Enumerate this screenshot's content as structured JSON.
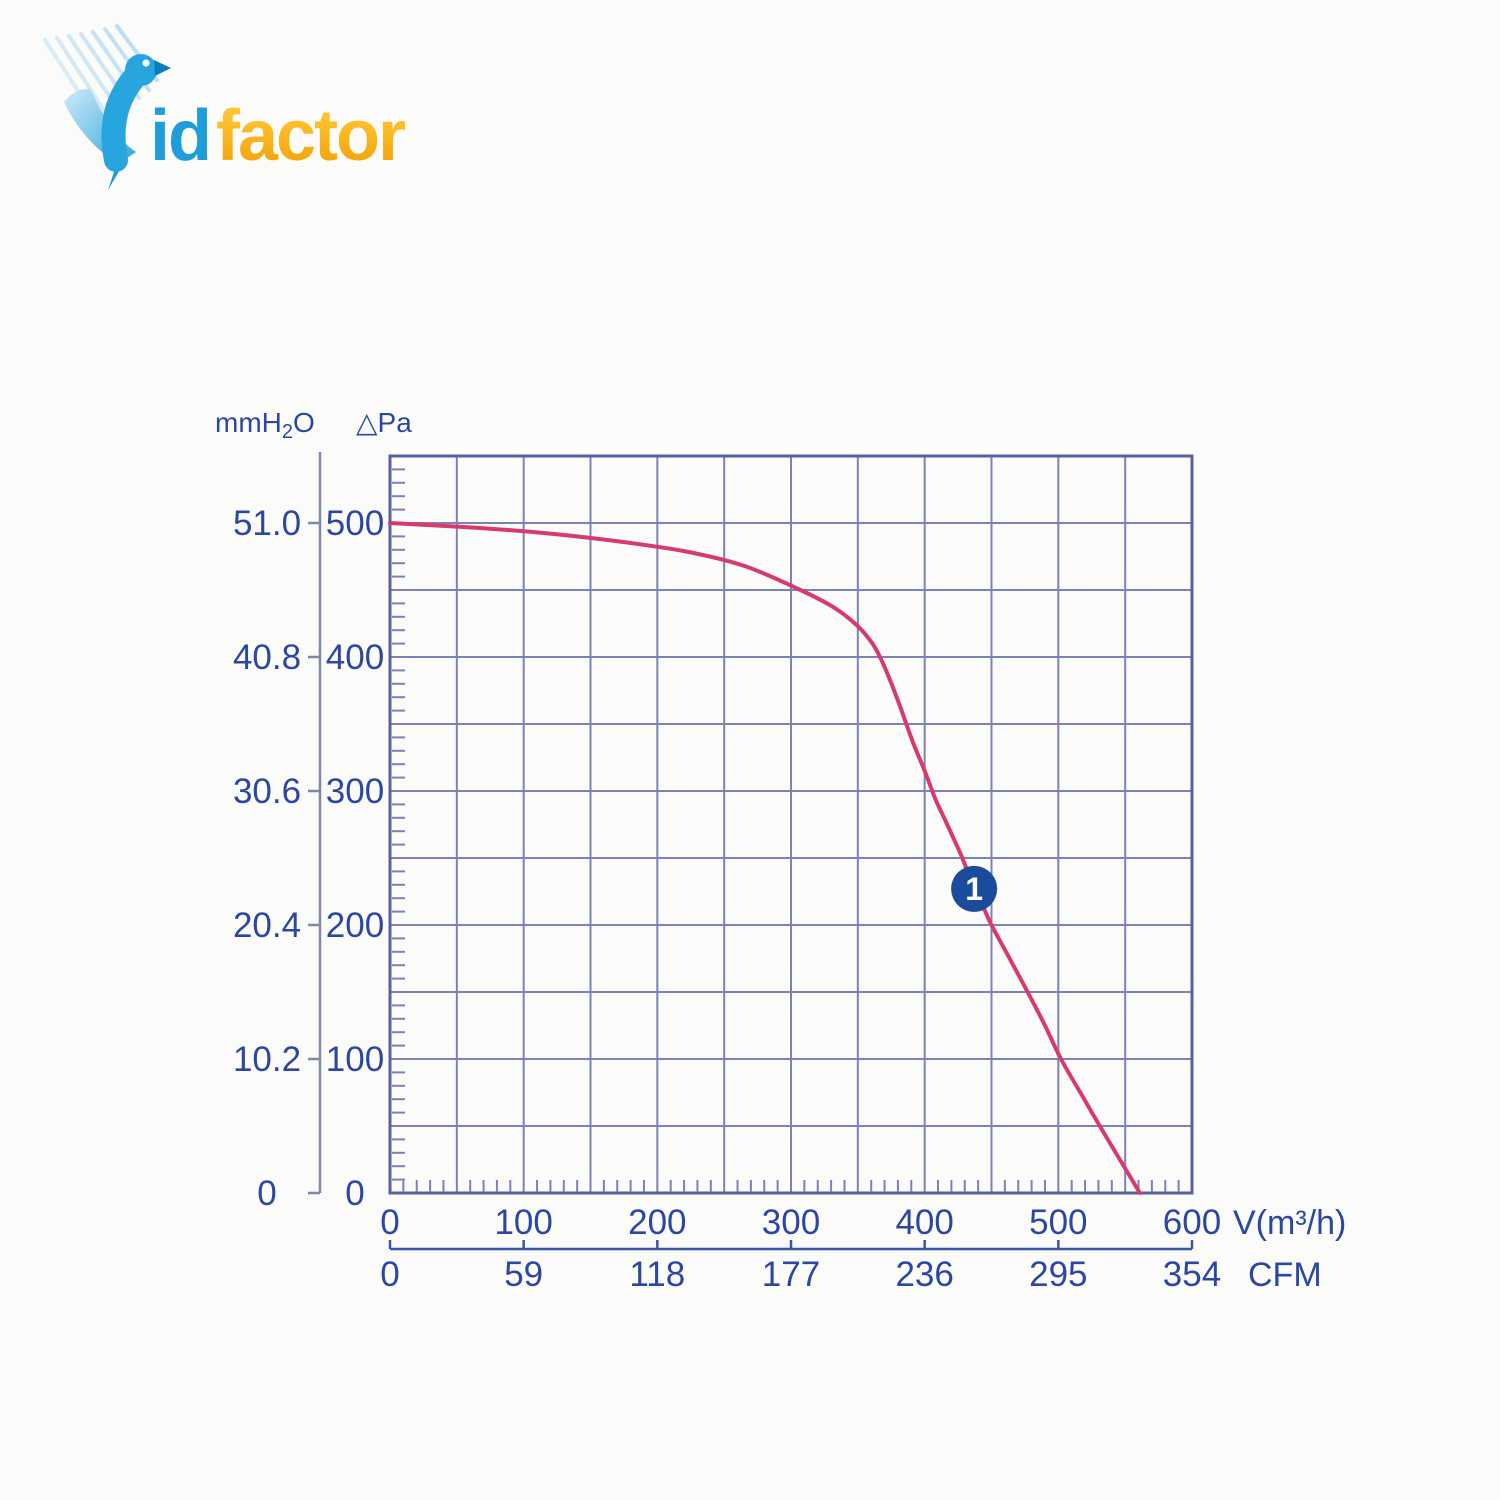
{
  "logo": {
    "id_text": "id",
    "factor_text": "factor",
    "blue": "#1f9ddb",
    "orange_top": "#ffc837",
    "orange_bottom": "#f09c00"
  },
  "chart_data": {
    "type": "line",
    "pressure_axis": {
      "header_mmh2o": "mmH₂O",
      "header_pa": "△Pa",
      "tick_values_pa": [
        500,
        400,
        300,
        200,
        100,
        0
      ],
      "mmh2o_tick_labels": [
        "51.0",
        "40.8",
        "30.6",
        "20.4",
        "10.2",
        "0"
      ],
      "pa_tick_labels": [
        "500",
        "400",
        "300",
        "200",
        "100",
        "0"
      ],
      "ylim_pa": [
        0,
        550
      ],
      "grid_step_pa": 50,
      "minor_tick_step_pa": 10
    },
    "flow_axis": {
      "unit_label": "V(m³/h)",
      "tick_values": [
        0,
        100,
        200,
        300,
        400,
        500,
        600
      ],
      "tick_labels": [
        "0",
        "100",
        "200",
        "300",
        "400",
        "500",
        "600"
      ],
      "xlim": [
        0,
        600
      ],
      "grid_step": 50,
      "minor_tick_step": 10
    },
    "cfm_axis": {
      "unit_label": "CFM",
      "tick_values": [
        0,
        100,
        200,
        300,
        400,
        500,
        600
      ],
      "tick_labels": [
        "0",
        "59",
        "118",
        "177",
        "236",
        "295",
        "354"
      ]
    },
    "series": [
      {
        "name": "pressure-flow-curve",
        "color": "#d73a6c",
        "points": [
          [
            0,
            500
          ],
          [
            55,
            497
          ],
          [
            110,
            493
          ],
          [
            165,
            487
          ],
          [
            220,
            479
          ],
          [
            265,
            468
          ],
          [
            307,
            450
          ],
          [
            332,
            437
          ],
          [
            350,
            423
          ],
          [
            361,
            410
          ],
          [
            367,
            399
          ],
          [
            374,
            383
          ],
          [
            382,
            362
          ],
          [
            391,
            337
          ],
          [
            400,
            315
          ],
          [
            408,
            294
          ],
          [
            415,
            279
          ],
          [
            421,
            266
          ],
          [
            429,
            248
          ],
          [
            437,
            227
          ],
          [
            444,
            213
          ],
          [
            450,
            200
          ],
          [
            463,
            176
          ],
          [
            477,
            150
          ],
          [
            490,
            125
          ],
          [
            502,
            100
          ],
          [
            517,
            74
          ],
          [
            531,
            50
          ],
          [
            546,
            25
          ],
          [
            561,
            0
          ]
        ]
      }
    ],
    "marker": {
      "label": "1",
      "flow": 437,
      "pa": 227,
      "fill": "#1b4c9c",
      "text_color": "#ffffff"
    },
    "grid": true,
    "legend": false,
    "colors": {
      "grid": "#7b83b6",
      "border": "#57629f",
      "text": "#2c47a1",
      "mm_axis": "#8087ae"
    }
  }
}
